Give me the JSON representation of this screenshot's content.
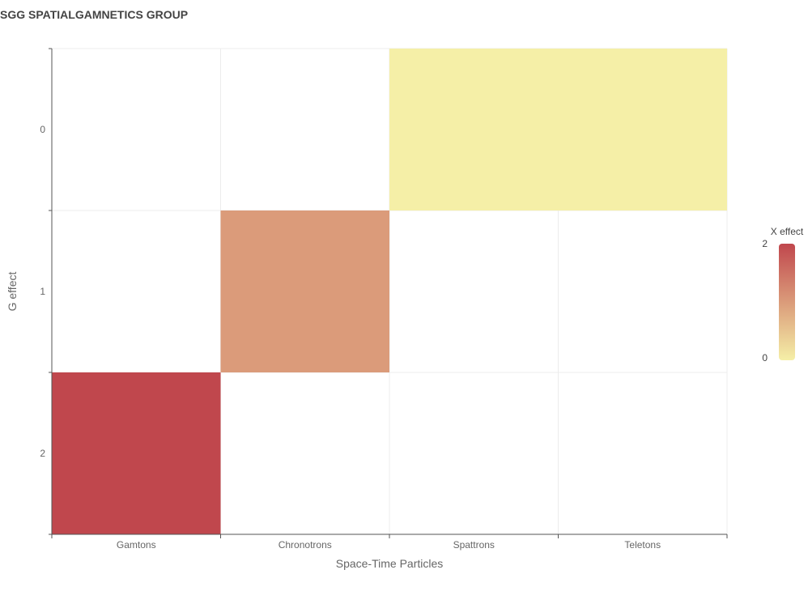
{
  "title": "SGG SPATIALGAMNETICS GROUP",
  "chart_data": {
    "type": "heatmap",
    "title": "SGG SPATIALGAMNETICS GROUP",
    "x_categories": [
      "Gamtons",
      "Chronotrons",
      "Spattrons",
      "Teletons"
    ],
    "y_categories": [
      "0",
      "1",
      "2"
    ],
    "xlabel": "Space-Time Particles",
    "ylabel": "G effect",
    "cells": [
      {
        "x": "Spattrons",
        "y": "0",
        "value": 0
      },
      {
        "x": "Teletons",
        "y": "0",
        "value": 0
      },
      {
        "x": "Chronotrons",
        "y": "1",
        "value": 1
      },
      {
        "x": "Gamtons",
        "y": "2",
        "value": 2
      }
    ],
    "color_scale": {
      "title": "X effect",
      "min": 0,
      "max": 2,
      "min_color": "#f5efa7",
      "max_color": "#c0474d"
    },
    "grid": true,
    "legend_position": "right"
  }
}
